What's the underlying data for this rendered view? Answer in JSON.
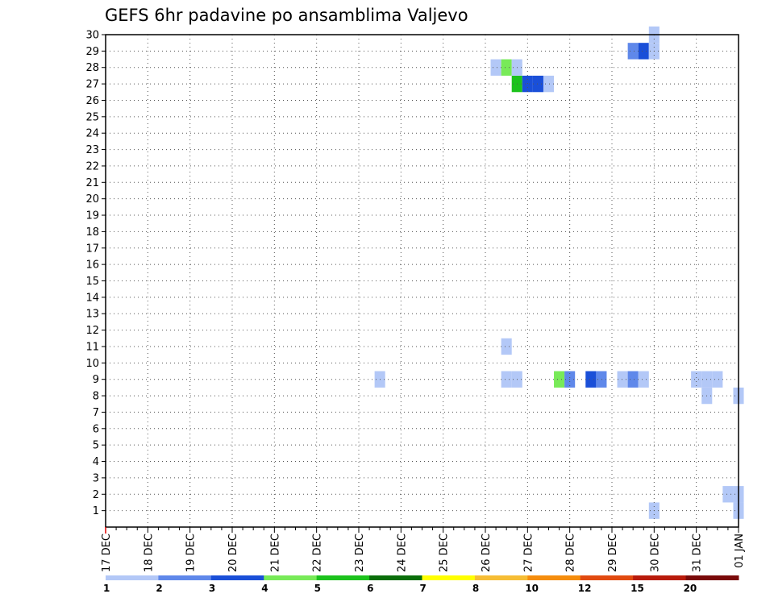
{
  "chart_data": {
    "type": "heatmap",
    "title": "GEFS 6hr padavine po ansamblima Valjevo",
    "x_tick_labels": [
      "17 DEC",
      "18 DEC",
      "19 DEC",
      "20 DEC",
      "21 DEC",
      "22 DEC",
      "23 DEC",
      "24 DEC",
      "25 DEC",
      "26 DEC",
      "27 DEC",
      "28 DEC",
      "29 DEC",
      "30 DEC",
      "31 DEC",
      "01 JAN"
    ],
    "y_tick_labels": [
      "1",
      "2",
      "3",
      "4",
      "5",
      "6",
      "7",
      "8",
      "9",
      "10",
      "11",
      "12",
      "13",
      "14",
      "15",
      "16",
      "17",
      "18",
      "19",
      "20",
      "21",
      "22",
      "23",
      "24",
      "25",
      "26",
      "27",
      "28",
      "29",
      "30"
    ],
    "ylim": [
      0,
      30
    ],
    "grid": true,
    "colorbar": {
      "labels": [
        "1",
        "2",
        "3",
        "4",
        "5",
        "6",
        "7",
        "8",
        "10",
        "12",
        "15",
        "20"
      ],
      "colors": [
        "#b3c8f7",
        "#5f88ea",
        "#1a4fd8",
        "#78ea58",
        "#1cc21c",
        "#0a6e0a",
        "#ffff00",
        "#f6bd35",
        "#f58d0d",
        "#e14a10",
        "#b81b0b",
        "#7a0a0a"
      ]
    },
    "cells": [
      {
        "t": 52,
        "m": 1,
        "v": 1
      },
      {
        "t": 60,
        "m": 1,
        "v": 1
      },
      {
        "t": 59,
        "m": 2,
        "v": 1
      },
      {
        "t": 60,
        "m": 2,
        "v": 1
      },
      {
        "t": 57,
        "m": 8,
        "v": 1
      },
      {
        "t": 60,
        "m": 8,
        "v": 1
      },
      {
        "t": 26,
        "m": 9,
        "v": 1
      },
      {
        "t": 38,
        "m": 9,
        "v": 1
      },
      {
        "t": 39,
        "m": 9,
        "v": 1
      },
      {
        "t": 43,
        "m": 9,
        "v": 4
      },
      {
        "t": 44,
        "m": 9,
        "v": 2
      },
      {
        "t": 46,
        "m": 9,
        "v": 3
      },
      {
        "t": 47,
        "m": 9,
        "v": 2
      },
      {
        "t": 49,
        "m": 9,
        "v": 1
      },
      {
        "t": 50,
        "m": 9,
        "v": 2
      },
      {
        "t": 51,
        "m": 9,
        "v": 1
      },
      {
        "t": 56,
        "m": 9,
        "v": 1
      },
      {
        "t": 57,
        "m": 9,
        "v": 1
      },
      {
        "t": 58,
        "m": 9,
        "v": 1
      },
      {
        "t": 38,
        "m": 11,
        "v": 1
      },
      {
        "t": 39,
        "m": 27,
        "v": 5
      },
      {
        "t": 40,
        "m": 27,
        "v": 3
      },
      {
        "t": 41,
        "m": 27,
        "v": 3
      },
      {
        "t": 42,
        "m": 27,
        "v": 1
      },
      {
        "t": 37,
        "m": 28,
        "v": 1
      },
      {
        "t": 38,
        "m": 28,
        "v": 4
      },
      {
        "t": 39,
        "m": 28,
        "v": 1
      },
      {
        "t": 50,
        "m": 29,
        "v": 2
      },
      {
        "t": 51,
        "m": 29,
        "v": 3
      },
      {
        "t": 52,
        "m": 29,
        "v": 1
      },
      {
        "t": 52,
        "m": 30,
        "v": 1
      }
    ]
  }
}
